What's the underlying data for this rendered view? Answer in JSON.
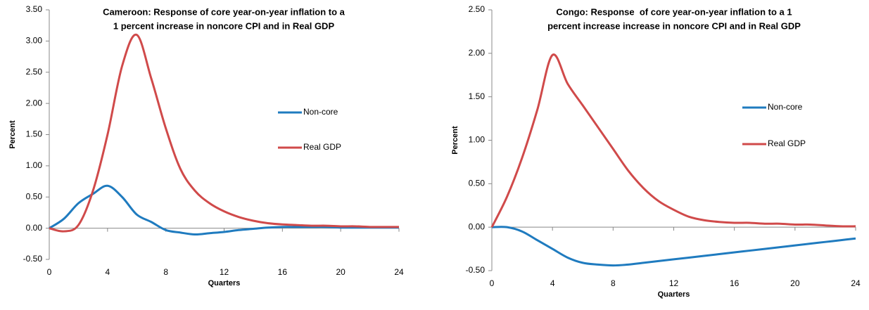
{
  "chart_data": [
    {
      "type": "line",
      "title": [
        "Cameroon: Response of core year-on-year inflation to a",
        "1 percent increase in noncore CPI and in Real GDP"
      ],
      "x_label": "Quarters",
      "y_label": "Percent",
      "x": [
        0,
        1,
        2,
        3,
        4,
        5,
        6,
        7,
        8,
        9,
        10,
        11,
        12,
        13,
        14,
        15,
        16,
        17,
        18,
        19,
        20,
        21,
        22,
        23,
        24
      ],
      "xlim": [
        0,
        24
      ],
      "xticks": [
        0,
        4,
        8,
        12,
        16,
        20,
        24
      ],
      "ylim": [
        -0.5,
        3.5
      ],
      "yticks": [
        {
          "value": -0.5,
          "label": "-0.50"
        },
        {
          "value": 0,
          "label": "0.00"
        },
        {
          "value": 0.5,
          "label": "0.50"
        },
        {
          "value": 1,
          "label": "1.00"
        },
        {
          "value": 1.5,
          "label": "1.50"
        },
        {
          "value": 2,
          "label": "2.00"
        },
        {
          "value": 2.5,
          "label": "2.50"
        },
        {
          "value": 3,
          "label": "3.00"
        },
        {
          "value": 3.5,
          "label": "3.50"
        }
      ],
      "legend": "right",
      "grid": false,
      "series": [
        {
          "name": "Non-core",
          "color": "#1f7bbf",
          "values": [
            0,
            0.15,
            0.4,
            0.55,
            0.68,
            0.5,
            0.22,
            0.1,
            -0.03,
            -0.07,
            -0.1,
            -0.08,
            -0.06,
            -0.03,
            -0.01,
            0.01,
            0.02,
            0.02,
            0.02,
            0.02,
            0.01,
            0.01,
            0.01,
            0.01,
            0.01
          ]
        },
        {
          "name": "Real GDP",
          "color": "#d04a4a",
          "values": [
            0,
            -0.05,
            0.05,
            0.6,
            1.5,
            2.6,
            3.1,
            2.4,
            1.6,
            0.95,
            0.6,
            0.4,
            0.27,
            0.18,
            0.12,
            0.08,
            0.06,
            0.05,
            0.04,
            0.04,
            0.03,
            0.03,
            0.02,
            0.02,
            0.02
          ]
        }
      ]
    },
    {
      "type": "line",
      "title": [
        "Congo: Response  of core year-on-year inflation to a 1",
        "percent increase increase in noncore CPI and in Real GDP"
      ],
      "x_label": "Quarters",
      "y_label": "Percent",
      "x": [
        0,
        1,
        2,
        3,
        4,
        5,
        6,
        7,
        8,
        9,
        10,
        11,
        12,
        13,
        14,
        15,
        16,
        17,
        18,
        19,
        20,
        21,
        22,
        23,
        24
      ],
      "xlim": [
        0,
        24
      ],
      "xticks": [
        0,
        4,
        8,
        12,
        16,
        20,
        24
      ],
      "ylim": [
        -0.5,
        2.5
      ],
      "yticks": [
        {
          "value": -0.5,
          "label": "-0.50"
        },
        {
          "value": 0,
          "label": "0.00"
        },
        {
          "value": 0.5,
          "label": "0.50"
        },
        {
          "value": 1,
          "label": "1.00"
        },
        {
          "value": 1.5,
          "label": "1.50"
        },
        {
          "value": 2,
          "label": "2.00"
        },
        {
          "value": 2.5,
          "label": "2.50"
        }
      ],
      "legend": "right",
      "grid": false,
      "series": [
        {
          "name": "Non-core",
          "color": "#1f7bbf",
          "values": [
            0,
            0,
            -0.05,
            -0.15,
            -0.25,
            -0.35,
            -0.41,
            -0.43,
            -0.44,
            -0.43,
            -0.41,
            -0.39,
            -0.37,
            -0.35,
            -0.33,
            -0.31,
            -0.29,
            -0.27,
            -0.25,
            -0.23,
            -0.21,
            -0.19,
            -0.17,
            -0.15,
            -0.13
          ]
        },
        {
          "name": "Real GDP",
          "color": "#d04a4a",
          "values": [
            0,
            0.35,
            0.8,
            1.35,
            1.98,
            1.65,
            1.4,
            1.15,
            0.9,
            0.65,
            0.45,
            0.3,
            0.2,
            0.12,
            0.08,
            0.06,
            0.05,
            0.05,
            0.04,
            0.04,
            0.03,
            0.03,
            0.02,
            0.01,
            0.01
          ]
        }
      ]
    }
  ]
}
